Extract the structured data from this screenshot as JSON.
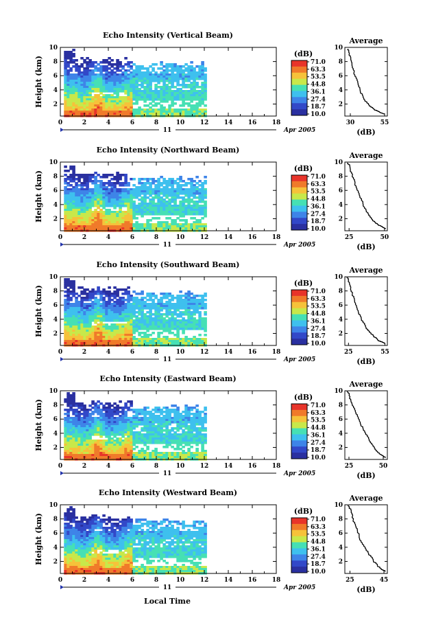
{
  "chart_data": {
    "type": "heatmap",
    "xlabel": "Local Time",
    "date_label": "11",
    "date_suffix": "Apr 2005",
    "x_ticks": [
      "0",
      "2",
      "4",
      "6",
      "8",
      "10",
      "12",
      "14",
      "16",
      "18"
    ],
    "xlim": [
      0,
      18
    ],
    "ylabel": "Height (km)",
    "y_ticks": [
      "2",
      "4",
      "6",
      "8",
      "10"
    ],
    "ylim": [
      0.3,
      10
    ],
    "colorbar": {
      "label": "(dB)",
      "ticks": [
        "71.0",
        "63.3",
        "53.5",
        "44.8",
        "36.1",
        "27.4",
        "18.7",
        "10.0"
      ],
      "colors": [
        "#e8342a",
        "#f07a2a",
        "#f6c23a",
        "#c8e84a",
        "#46e0b4",
        "#3ec0ee",
        "#3e84e8",
        "#3248c8",
        "#2a30a0"
      ]
    },
    "data_time_range": [
      0.3,
      12
    ],
    "average_title": "Average",
    "average_xlabel": "(dB)",
    "average_yticks": [
      "2",
      "4",
      "6",
      "8",
      "10"
    ],
    "panels": [
      {
        "title": "Echo Intensity (Vertical Beam)",
        "avg_xticks": [
          "30",
          "55"
        ],
        "avg_xlim": [
          26,
          57
        ],
        "avg_profile": [
          [
            55,
            0.6
          ],
          [
            52,
            0.8
          ],
          [
            48,
            1.2
          ],
          [
            44,
            1.8
          ],
          [
            40,
            2.8
          ],
          [
            37,
            4.0
          ],
          [
            35,
            5.2
          ],
          [
            33,
            6.4
          ],
          [
            31,
            7.6
          ],
          [
            30,
            8.6
          ],
          [
            29,
            9.4
          ],
          [
            28,
            9.8
          ]
        ]
      },
      {
        "title": "Echo Intensity (Northward Beam)",
        "avg_xticks": [
          "25",
          "50"
        ],
        "avg_xlim": [
          22,
          52
        ],
        "avg_profile": [
          [
            51,
            0.6
          ],
          [
            47,
            1.0
          ],
          [
            43,
            1.6
          ],
          [
            39,
            2.6
          ],
          [
            36,
            3.6
          ],
          [
            33,
            5.2
          ],
          [
            30,
            6.6
          ],
          [
            28,
            7.8
          ],
          [
            26,
            8.8
          ],
          [
            25,
            9.6
          ],
          [
            24,
            9.9
          ]
        ]
      },
      {
        "title": "Echo Intensity (Southward Beam)",
        "avg_xticks": [
          "25",
          "55"
        ],
        "avg_xlim": [
          22,
          57
        ],
        "avg_profile": [
          [
            55,
            0.6
          ],
          [
            50,
            1.0
          ],
          [
            45,
            1.8
          ],
          [
            40,
            2.8
          ],
          [
            36,
            4.0
          ],
          [
            33,
            5.2
          ],
          [
            30,
            6.6
          ],
          [
            28,
            7.8
          ],
          [
            26,
            8.8
          ],
          [
            25,
            9.6
          ],
          [
            24,
            9.9
          ]
        ]
      },
      {
        "title": "Echo Intensity (Eastward Beam)",
        "avg_xticks": [
          "25",
          "50"
        ],
        "avg_xlim": [
          22,
          53
        ],
        "avg_profile": [
          [
            52,
            0.6
          ],
          [
            48,
            1.0
          ],
          [
            44,
            1.8
          ],
          [
            41,
            2.8
          ],
          [
            37,
            4.0
          ],
          [
            34,
            5.2
          ],
          [
            31,
            6.6
          ],
          [
            28,
            7.8
          ],
          [
            26,
            8.8
          ],
          [
            25,
            9.6
          ],
          [
            24,
            9.9
          ]
        ]
      },
      {
        "title": "Echo Intensity (Westward Beam)",
        "avg_xticks": [
          "25",
          "45"
        ],
        "avg_xlim": [
          22,
          47
        ],
        "avg_profile": [
          [
            46,
            0.6
          ],
          [
            43,
            1.0
          ],
          [
            40,
            1.8
          ],
          [
            37,
            2.8
          ],
          [
            34,
            4.0
          ],
          [
            31,
            5.2
          ],
          [
            29,
            6.6
          ],
          [
            27,
            7.8
          ],
          [
            26,
            8.8
          ],
          [
            25,
            9.6
          ],
          [
            24,
            9.9
          ]
        ]
      }
    ]
  }
}
